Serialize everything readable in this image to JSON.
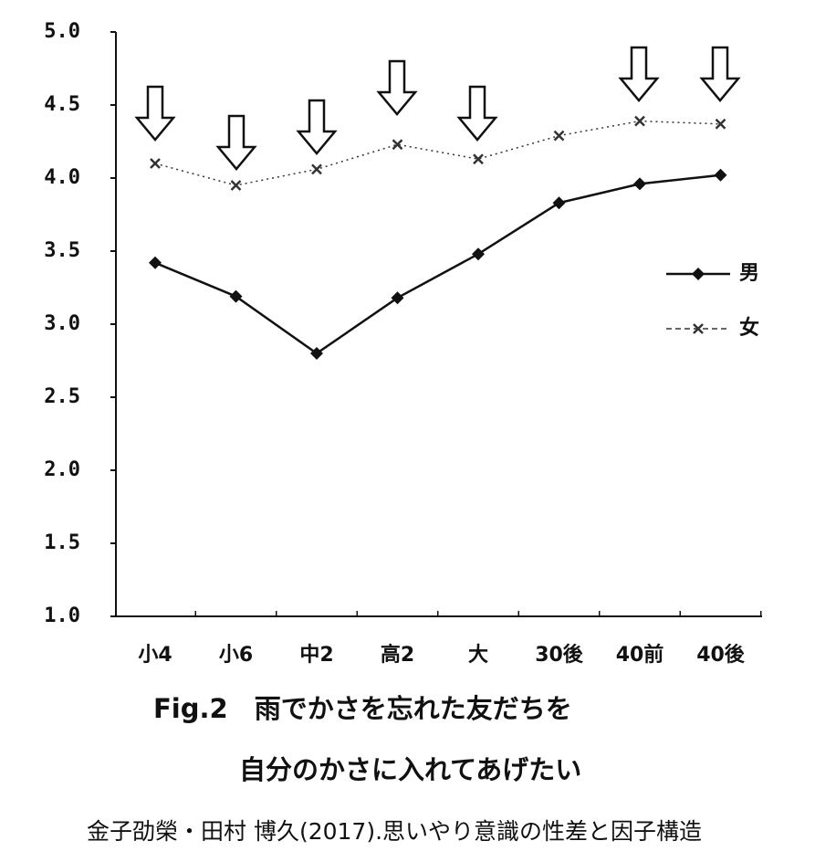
{
  "chart_data": {
    "type": "line",
    "title": "Fig.2　雨でかさを忘れた友だちを",
    "subtitle": "自分のかさに入れてあげたい",
    "source": "金子劭榮・田村 博久(2017).思いやり意識の性差と因子構造",
    "categories": [
      "小4",
      "小6",
      "中2",
      "高2",
      "大",
      "30後",
      "40前",
      "40後"
    ],
    "series": [
      {
        "name": "男",
        "color": "#111111",
        "style": "solid",
        "values": [
          3.42,
          3.19,
          2.8,
          3.18,
          3.48,
          3.83,
          3.96,
          4.02
        ]
      },
      {
        "name": "女",
        "color": "#333333",
        "style": "dotted",
        "values": [
          4.1,
          3.95,
          4.06,
          4.23,
          4.13,
          4.29,
          4.39,
          4.37
        ]
      }
    ],
    "ylim": [
      1,
      5
    ],
    "yticks": [
      {
        "value": 1,
        "label": "1.0"
      },
      1.5,
      {
        "value": 2,
        "label": "2.0"
      },
      2.5,
      {
        "value": 3,
        "label": "3.0"
      },
      3.5,
      {
        "value": 4,
        "label": "4.0"
      },
      4.5,
      {
        "value": 5,
        "label": "5.0"
      }
    ],
    "grid": false
  }
}
